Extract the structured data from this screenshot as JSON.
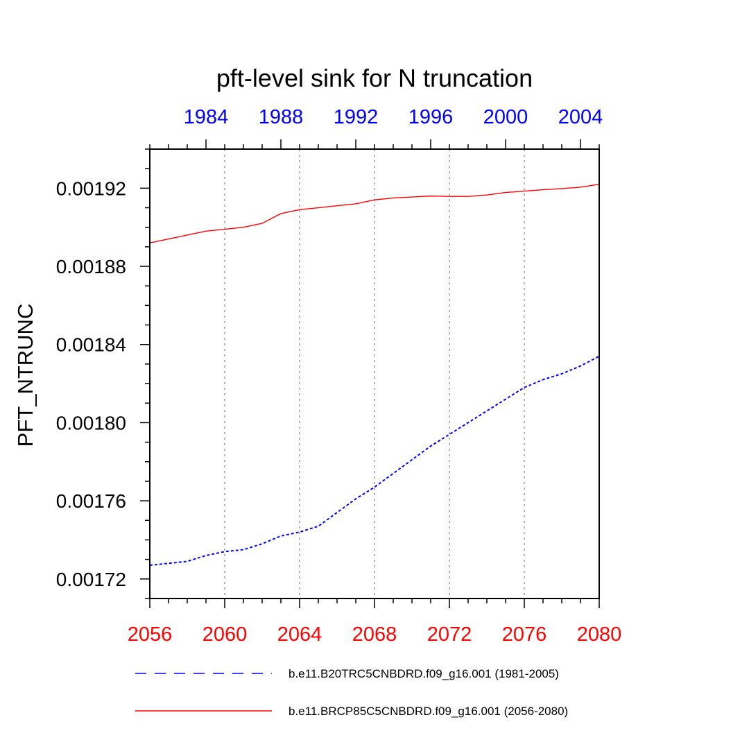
{
  "chart_data": {
    "type": "line",
    "title": "pft-level sink for N truncation",
    "ylabel": "PFT_NTRUNC",
    "xlabel": "",
    "ylim": [
      0.00171,
      0.00194
    ],
    "yticks": [
      0.00172,
      0.00176,
      0.0018,
      0.00184,
      0.00188,
      0.00192
    ],
    "ytick_labels": [
      "0.00172",
      "0.00176",
      "0.00180",
      "0.00184",
      "0.00188",
      "0.00192"
    ],
    "bottom_axis": {
      "range": [
        2056,
        2080
      ],
      "ticks": [
        2056,
        2060,
        2064,
        2068,
        2072,
        2076,
        2080
      ],
      "tick_labels": [
        "2056",
        "2060",
        "2064",
        "2068",
        "2072",
        "2076",
        "2080"
      ],
      "color": "#ff0000"
    },
    "top_axis": {
      "range": [
        1981,
        2005
      ],
      "ticks": [
        1984,
        1988,
        1992,
        1996,
        2000,
        2004
      ],
      "tick_labels": [
        "1984",
        "1988",
        "1992",
        "1996",
        "2000",
        "2004"
      ],
      "color": "#0000ff"
    },
    "grid": "vertical dotted at major x ticks",
    "legend_placement": "bottom",
    "series": [
      {
        "name": "b.e11.BRCP85C5CNBDRD.f09_g16.001 (2056-2080)",
        "axis": "bottom",
        "color": "#ff0000",
        "dash": "solid",
        "x": [
          2056,
          2057,
          2058,
          2059,
          2060,
          2061,
          2062,
          2063,
          2064,
          2065,
          2066,
          2067,
          2068,
          2069,
          2070,
          2071,
          2072,
          2073,
          2074,
          2075,
          2076,
          2077,
          2078,
          2079,
          2080
        ],
        "y": [
          0.001892,
          0.001894,
          0.001896,
          0.001898,
          0.001899,
          0.0019,
          0.001902,
          0.001907,
          0.001909,
          0.00191,
          0.001911,
          0.001912,
          0.001914,
          0.001915,
          0.0019155,
          0.001916,
          0.0019158,
          0.0019158,
          0.0019165,
          0.0019178,
          0.0019185,
          0.0019192,
          0.0019198,
          0.0019205,
          0.001922
        ]
      },
      {
        "name": "b.e11.B20TRC5CNBDRD.f09_g16.001 (1981-2005)",
        "axis": "top",
        "color": "#0000ff",
        "dash": "dashed",
        "x": [
          1981,
          1982,
          1983,
          1984,
          1985,
          1986,
          1987,
          1988,
          1989,
          1990,
          1991,
          1992,
          1993,
          1994,
          1995,
          1996,
          1997,
          1998,
          1999,
          2000,
          2001,
          2002,
          2003,
          2004,
          2005
        ],
        "y": [
          0.001727,
          0.001728,
          0.001729,
          0.001732,
          0.001734,
          0.001735,
          0.001738,
          0.001742,
          0.001744,
          0.001747,
          0.001754,
          0.001761,
          0.001767,
          0.001774,
          0.001781,
          0.001788,
          0.001794,
          0.0018,
          0.001806,
          0.001812,
          0.001818,
          0.001822,
          0.001825,
          0.001829,
          0.001834
        ]
      }
    ],
    "legend": [
      {
        "label": "b.e11.B20TRC5CNBDRD.f09_g16.001 (1981-2005)",
        "color": "#0000ff",
        "dash": "dashed"
      },
      {
        "label": "b.e11.BRCP85C5CNBDRD.f09_g16.001 (2056-2080)",
        "color": "#ff0000",
        "dash": "solid"
      }
    ]
  }
}
